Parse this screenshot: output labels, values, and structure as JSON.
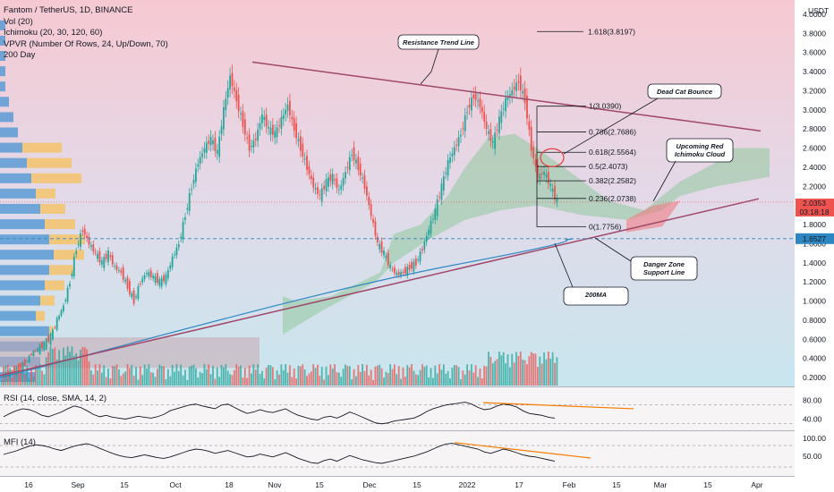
{
  "header": {
    "title": "Fantom / TetherUS, 1D, BINANCE",
    "indicators": [
      "Vol (20)",
      "Ichimoku (20, 30, 120, 60)",
      "VPVR (Number Of Rows, 24, Up/Down, 70)",
      "200 Day"
    ]
  },
  "currency": "USDT",
  "rsi_label": "RSI (14, close, SMA, 14, 2)",
  "mfi_label": "MFI (14)",
  "price_tag": {
    "value": "2.0353",
    "countdown": "03:18:18"
  },
  "ma_tag": "1.6527",
  "colors": {
    "up": "#26a69a",
    "down": "#ef5350",
    "resistance": "#a0486a",
    "ma200": "#2e86c1",
    "orange": "#f57c00"
  },
  "chart_data": {
    "type": "candlestick",
    "title": "Fantom / TetherUS, 1D, BINANCE",
    "ylim": [
      0.1,
      4.1
    ],
    "y_ticks": [
      "4.0000",
      "3.8000",
      "3.6000",
      "3.4000",
      "3.2000",
      "3.0000",
      "2.8000",
      "2.6000",
      "2.4000",
      "2.2000",
      "2.0000",
      "1.8000",
      "1.6000",
      "1.4000",
      "1.2000",
      "1.0000",
      "0.8000",
      "0.6000",
      "0.4000",
      "0.2000"
    ],
    "x_ticks": [
      "16",
      "Sep",
      "15",
      "Oct",
      "18",
      "Nov",
      "15",
      "Dec",
      "15",
      "2022",
      "17",
      "Feb",
      "15",
      "Mar",
      "15",
      "Apr"
    ],
    "close_path": [
      0.23,
      0.26,
      0.3,
      0.35,
      0.45,
      0.5,
      0.55,
      0.63,
      0.8,
      0.95,
      1.2,
      1.55,
      1.75,
      1.6,
      1.5,
      1.4,
      1.5,
      1.35,
      1.3,
      1.15,
      1.0,
      1.2,
      1.3,
      1.25,
      1.2,
      1.25,
      1.45,
      1.6,
      1.9,
      2.2,
      2.45,
      2.6,
      2.7,
      2.55,
      3.0,
      3.35,
      3.1,
      2.85,
      2.6,
      2.7,
      2.95,
      2.8,
      2.75,
      2.9,
      3.05,
      2.8,
      2.6,
      2.4,
      2.2,
      2.1,
      2.25,
      2.3,
      2.15,
      2.35,
      2.55,
      2.4,
      2.2,
      1.9,
      1.6,
      1.5,
      1.35,
      1.28,
      1.3,
      1.35,
      1.4,
      1.55,
      1.75,
      1.95,
      2.2,
      2.45,
      2.6,
      2.75,
      3.0,
      3.15,
      3.05,
      2.8,
      2.65,
      2.9,
      3.1,
      3.2,
      3.3,
      3.1,
      2.6,
      2.3,
      2.35,
      2.2,
      2.04
    ],
    "fib_levels": [
      {
        "label": "1.618(3.8197)",
        "value": 3.8197
      },
      {
        "label": "1(3.0390)",
        "value": 3.039
      },
      {
        "label": "0.786(2.7686)",
        "value": 2.7686
      },
      {
        "label": "0.618(2.5564)",
        "value": 2.5564
      },
      {
        "label": "0.5(2.4073)",
        "value": 2.4073
      },
      {
        "label": "0.382(2.2582)",
        "value": 2.2582
      },
      {
        "label": "0.236(2.0738)",
        "value": 2.0738
      },
      {
        "label": "0(1.7756)",
        "value": 1.7756
      }
    ],
    "annotations": [
      "Resistance Trend Line",
      "Dead Cat Bounce",
      "Upcoming Red Ichimoku Cloud",
      "Danger Zone Support Line",
      "200MA"
    ],
    "rsi": {
      "ticks": [
        "80.00",
        "40.00"
      ],
      "ylim": [
        20,
        100
      ],
      "values": [
        45,
        52,
        58,
        62,
        60,
        55,
        48,
        45,
        50,
        55,
        62,
        68,
        65,
        58,
        50,
        45,
        48,
        44,
        42,
        40,
        43,
        46,
        44,
        42,
        45,
        50,
        58,
        62,
        66,
        70,
        72,
        68,
        65,
        62,
        70,
        72,
        65,
        58,
        52,
        55,
        60,
        56,
        54,
        58,
        62,
        54,
        48,
        44,
        40,
        38,
        44,
        46,
        42,
        48,
        55,
        50,
        44,
        38,
        32,
        30,
        32,
        36,
        38,
        40,
        42,
        48,
        56,
        62,
        66,
        70,
        72,
        74,
        76,
        72,
        65,
        60,
        62,
        68,
        72,
        70,
        66,
        58,
        52,
        50,
        48,
        44,
        42
      ]
    },
    "mfi": {
      "ticks": [
        "100.00",
        "50.00"
      ],
      "ylim": [
        0,
        110
      ],
      "values": [
        55,
        60,
        65,
        72,
        78,
        82,
        80,
        76,
        70,
        66,
        72,
        78,
        82,
        85,
        80,
        72,
        65,
        58,
        52,
        48,
        46,
        50,
        54,
        50,
        46,
        44,
        48,
        54,
        60,
        66,
        70,
        68,
        64,
        58,
        62,
        66,
        60,
        54,
        48,
        50,
        56,
        52,
        48,
        54,
        60,
        52,
        44,
        38,
        32,
        30,
        38,
        42,
        36,
        44,
        52,
        46,
        40,
        36,
        32,
        30,
        34,
        38,
        42,
        46,
        50,
        56,
        62,
        70,
        78,
        84,
        86,
        82,
        78,
        74,
        70,
        62,
        58,
        64,
        70,
        66,
        60,
        54,
        50,
        48,
        44,
        40,
        36
      ]
    }
  }
}
